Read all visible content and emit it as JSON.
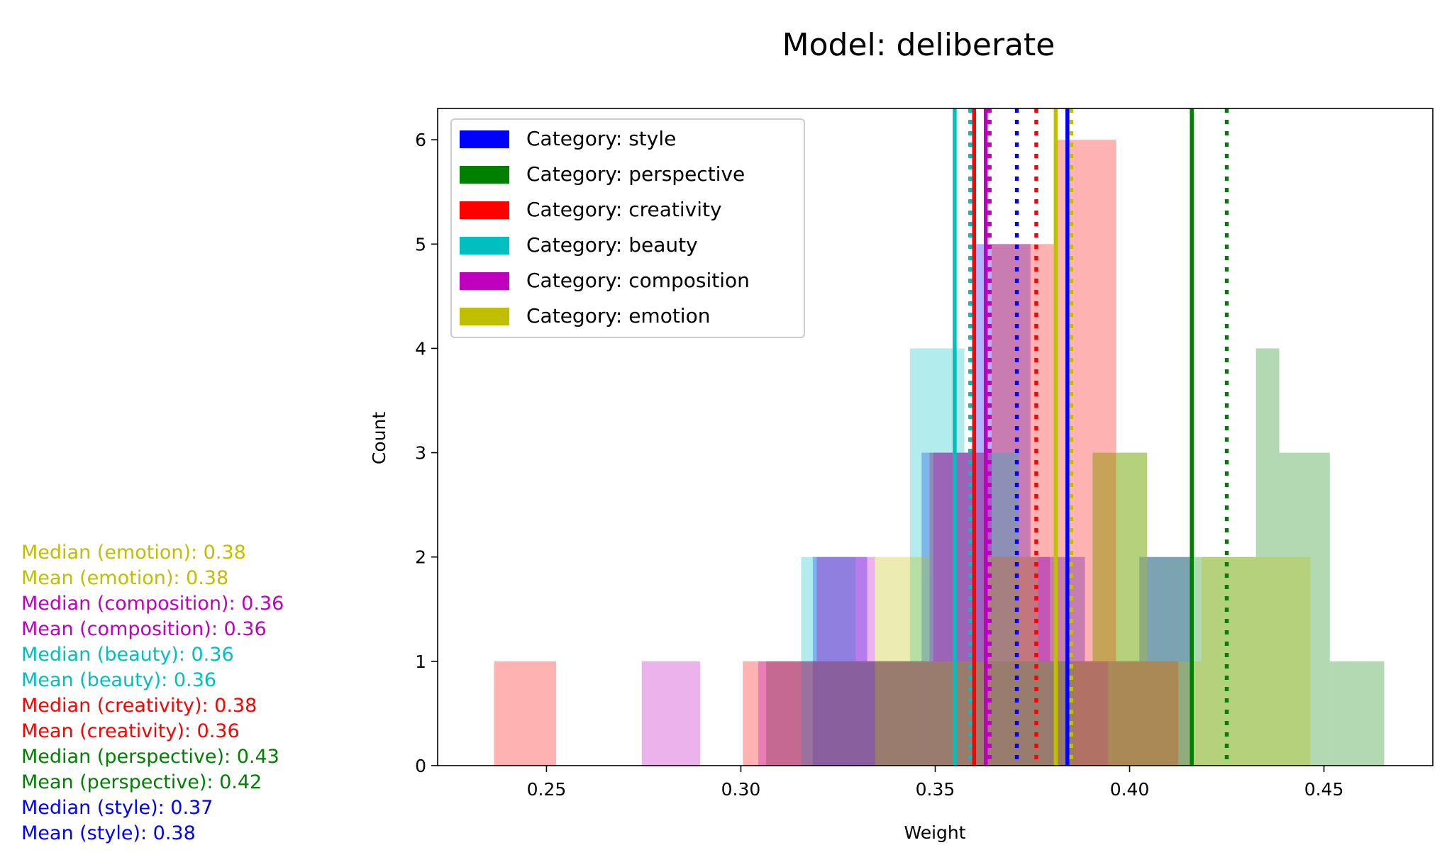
{
  "chart_data": {
    "type": "histogram",
    "title": "Model: deliberate",
    "xlabel": "Weight",
    "ylabel": "Count",
    "xlim": [
      0.222,
      0.478
    ],
    "ylim": [
      0,
      6.3
    ],
    "xticks": [
      {
        "value": 0.25,
        "label": "0.25"
      },
      {
        "value": 0.3,
        "label": "0.30"
      },
      {
        "value": 0.35,
        "label": "0.35"
      },
      {
        "value": 0.4,
        "label": "0.40"
      },
      {
        "value": 0.45,
        "label": "0.45"
      }
    ],
    "yticks": [
      {
        "value": 0,
        "label": "0"
      },
      {
        "value": 1,
        "label": "1"
      },
      {
        "value": 2,
        "label": "2"
      },
      {
        "value": 3,
        "label": "3"
      },
      {
        "value": 4,
        "label": "4"
      },
      {
        "value": 5,
        "label": "5"
      },
      {
        "value": 6,
        "label": "6"
      }
    ],
    "legend_position": "top-left",
    "series": [
      {
        "key": "style",
        "name": "Category: style",
        "color": "#0000ff",
        "mean": 0.384,
        "median": 0.371,
        "bins": [
          {
            "x0": 0.3185,
            "x1": 0.3325,
            "count": 2
          },
          {
            "x0": 0.3325,
            "x1": 0.3465,
            "count": 1
          },
          {
            "x0": 0.3465,
            "x1": 0.3605,
            "count": 3
          },
          {
            "x0": 0.3605,
            "x1": 0.3745,
            "count": 5
          },
          {
            "x0": 0.3745,
            "x1": 0.3885,
            "count": 2
          },
          {
            "x0": 0.3885,
            "x1": 0.4025,
            "count": 1
          },
          {
            "x0": 0.4025,
            "x1": 0.4165,
            "count": 2
          }
        ]
      },
      {
        "key": "perspective",
        "name": "Category: perspective",
        "color": "#008000",
        "mean": 0.416,
        "median": 0.425,
        "bins": [
          {
            "x0": 0.3065,
            "x1": 0.3205,
            "count": 1
          },
          {
            "x0": 0.3205,
            "x1": 0.3345,
            "count": 1
          },
          {
            "x0": 0.3345,
            "x1": 0.3485,
            "count": 1
          },
          {
            "x0": 0.3485,
            "x1": 0.3625,
            "count": 1
          },
          {
            "x0": 0.3625,
            "x1": 0.3765,
            "count": 1
          },
          {
            "x0": 0.3765,
            "x1": 0.3905,
            "count": 1
          },
          {
            "x0": 0.3905,
            "x1": 0.4045,
            "count": 3
          },
          {
            "x0": 0.4045,
            "x1": 0.4185,
            "count": 2
          },
          {
            "x0": 0.4185,
            "x1": 0.4325,
            "count": 2
          },
          {
            "x0": 0.4325,
            "x1": 0.4385,
            "count": 4
          },
          {
            "x0": 0.4385,
            "x1": 0.4515,
            "count": 3
          },
          {
            "x0": 0.4515,
            "x1": 0.4655,
            "count": 1
          }
        ]
      },
      {
        "key": "creativity",
        "name": "Category: creativity",
        "color": "#ff0000",
        "mean": 0.36,
        "median": 0.376,
        "bins": [
          {
            "x0": 0.2365,
            "x1": 0.2525,
            "count": 1
          },
          {
            "x0": 0.3005,
            "x1": 0.3165,
            "count": 1
          },
          {
            "x0": 0.3165,
            "x1": 0.3325,
            "count": 1
          },
          {
            "x0": 0.3325,
            "x1": 0.3485,
            "count": 1
          },
          {
            "x0": 0.3485,
            "x1": 0.3645,
            "count": 3
          },
          {
            "x0": 0.3645,
            "x1": 0.3805,
            "count": 5
          },
          {
            "x0": 0.3805,
            "x1": 0.3965,
            "count": 6
          },
          {
            "x0": 0.3965,
            "x1": 0.4125,
            "count": 1
          }
        ]
      },
      {
        "key": "beauty",
        "name": "Category: beauty",
        "color": "#00bfbf",
        "mean": 0.355,
        "median": 0.359,
        "bins": [
          {
            "x0": 0.3155,
            "x1": 0.3295,
            "count": 2
          },
          {
            "x0": 0.3295,
            "x1": 0.3435,
            "count": 1
          },
          {
            "x0": 0.3435,
            "x1": 0.3575,
            "count": 4
          },
          {
            "x0": 0.3575,
            "x1": 0.3715,
            "count": 3
          },
          {
            "x0": 0.3715,
            "x1": 0.3855,
            "count": 1
          }
        ]
      },
      {
        "key": "composition",
        "name": "Category: composition",
        "color": "#bf00bf",
        "mean": 0.363,
        "median": 0.364,
        "bins": [
          {
            "x0": 0.2745,
            "x1": 0.2895,
            "count": 1
          },
          {
            "x0": 0.3045,
            "x1": 0.3195,
            "count": 1
          },
          {
            "x0": 0.3195,
            "x1": 0.3345,
            "count": 2
          },
          {
            "x0": 0.3345,
            "x1": 0.3495,
            "count": 1
          },
          {
            "x0": 0.3495,
            "x1": 0.3645,
            "count": 3
          },
          {
            "x0": 0.3645,
            "x1": 0.3795,
            "count": 2
          },
          {
            "x0": 0.3795,
            "x1": 0.3945,
            "count": 1
          }
        ]
      },
      {
        "key": "emotion",
        "name": "Category: emotion",
        "color": "#bfbf00",
        "mean": 0.381,
        "median": 0.385,
        "bins": [
          {
            "x0": 0.3345,
            "x1": 0.3485,
            "count": 2
          },
          {
            "x0": 0.3485,
            "x1": 0.3625,
            "count": 1
          },
          {
            "x0": 0.3625,
            "x1": 0.3765,
            "count": 2
          },
          {
            "x0": 0.3765,
            "x1": 0.3905,
            "count": 1
          },
          {
            "x0": 0.3905,
            "x1": 0.4045,
            "count": 3
          },
          {
            "x0": 0.4045,
            "x1": 0.4185,
            "count": 1
          },
          {
            "x0": 0.4185,
            "x1": 0.4325,
            "count": 2
          },
          {
            "x0": 0.4325,
            "x1": 0.4465,
            "count": 2
          }
        ]
      }
    ],
    "stats_text": [
      {
        "text": "Median (emotion): 0.38",
        "color": "#bfbf00"
      },
      {
        "text": "Mean (emotion): 0.38",
        "color": "#bfbf00"
      },
      {
        "text": "Median (composition): 0.36",
        "color": "#bf00bf"
      },
      {
        "text": "Mean (composition): 0.36",
        "color": "#bf00bf"
      },
      {
        "text": "Median (beauty): 0.36",
        "color": "#00bfbf"
      },
      {
        "text": "Mean (beauty): 0.36",
        "color": "#00bfbf"
      },
      {
        "text": "Median (creativity): 0.38",
        "color": "#ff0000"
      },
      {
        "text": "Mean (creativity): 0.36",
        "color": "#ff0000"
      },
      {
        "text": "Median (perspective): 0.43",
        "color": "#008000"
      },
      {
        "text": "Mean (perspective): 0.42",
        "color": "#008000"
      },
      {
        "text": "Median (style): 0.37",
        "color": "#0000ff"
      },
      {
        "text": "Mean (style): 0.38",
        "color": "#0000ff"
      }
    ]
  }
}
